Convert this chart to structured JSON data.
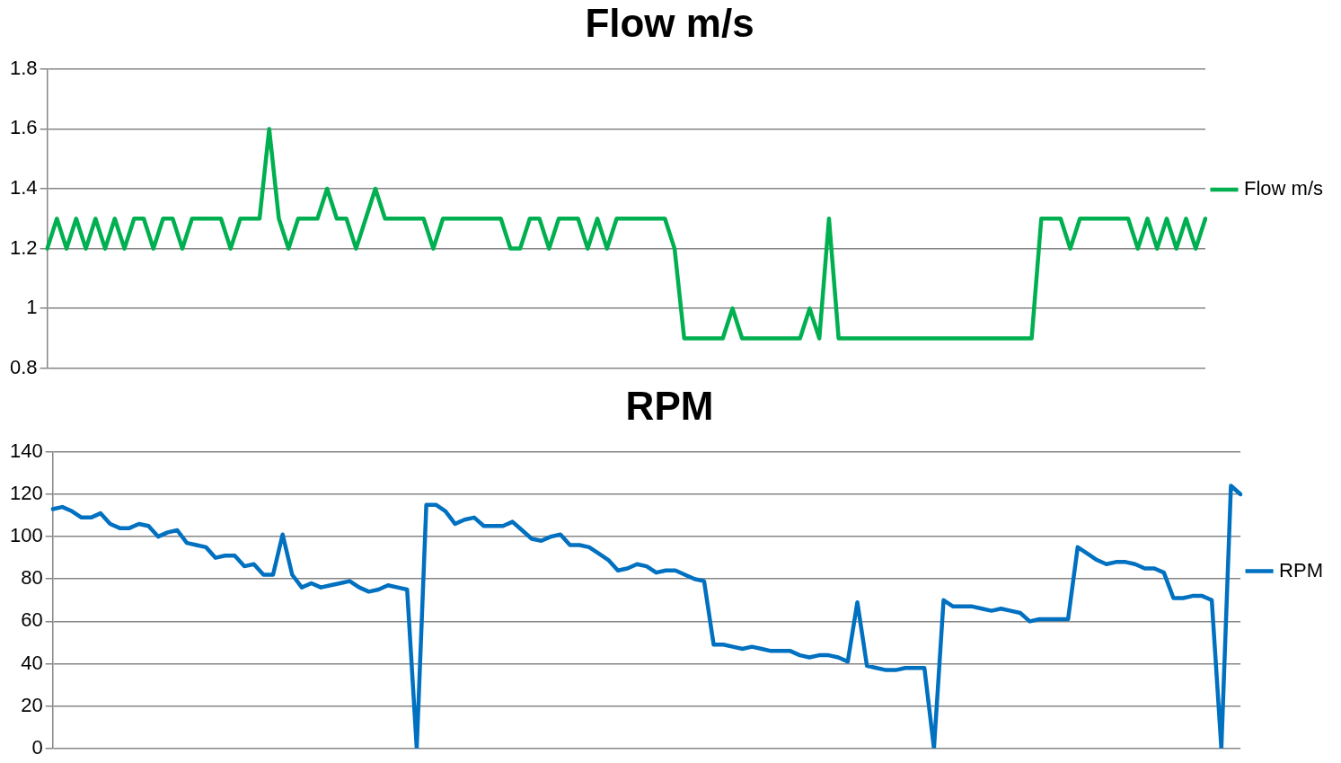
{
  "chart_data": [
    {
      "type": "line",
      "title": "Flow m/s",
      "categories": [
        null,
        null,
        null,
        null,
        null,
        null,
        null,
        null,
        null,
        null,
        null,
        null,
        null,
        null,
        null,
        null,
        null,
        null,
        null,
        null,
        null,
        null,
        null,
        null,
        null,
        null,
        null,
        null,
        null,
        null,
        null,
        null,
        null,
        null,
        null,
        null,
        null,
        null,
        null,
        null,
        null,
        null,
        null,
        null,
        null,
        null,
        null,
        null,
        null,
        null,
        null,
        null,
        null,
        null,
        null,
        null,
        null,
        null,
        null,
        null,
        null,
        null,
        null,
        null,
        null,
        null,
        null,
        null,
        null,
        null,
        null,
        null,
        null,
        null,
        null,
        null,
        null,
        null,
        null,
        null,
        null,
        null,
        null,
        null,
        null,
        null,
        null,
        null,
        null,
        null,
        null,
        null,
        null,
        null,
        null,
        null,
        null,
        null,
        null,
        null,
        null,
        null,
        null,
        null,
        null,
        null,
        null,
        null,
        null,
        null,
        null,
        null,
        null,
        null,
        null,
        null,
        null,
        null,
        null,
        null,
        null
      ],
      "series": [
        {
          "name": "Flow m/s",
          "color": "#00b050",
          "values": [
            1.2,
            1.3,
            1.2,
            1.3,
            1.2,
            1.3,
            1.2,
            1.3,
            1.2,
            1.3,
            1.3,
            1.2,
            1.3,
            1.3,
            1.2,
            1.3,
            1.3,
            1.3,
            1.3,
            1.2,
            1.3,
            1.3,
            1.3,
            1.6,
            1.3,
            1.2,
            1.3,
            1.3,
            1.3,
            1.4,
            1.3,
            1.3,
            1.2,
            1.3,
            1.4,
            1.3,
            1.3,
            1.3,
            1.3,
            1.3,
            1.2,
            1.3,
            1.3,
            1.3,
            1.3,
            1.3,
            1.3,
            1.3,
            1.2,
            1.2,
            1.3,
            1.3,
            1.2,
            1.3,
            1.3,
            1.3,
            1.2,
            1.3,
            1.2,
            1.3,
            1.3,
            1.3,
            1.3,
            1.3,
            1.3,
            1.2,
            0.9,
            0.9,
            0.9,
            0.9,
            0.9,
            1.0,
            0.9,
            0.9,
            0.9,
            0.9,
            0.9,
            0.9,
            0.9,
            1.0,
            0.9,
            1.3,
            0.9,
            0.9,
            0.9,
            0.9,
            0.9,
            0.9,
            0.9,
            0.9,
            0.9,
            0.9,
            0.9,
            0.9,
            0.9,
            0.9,
            0.9,
            0.9,
            0.9,
            0.9,
            0.9,
            0.9,
            0.9,
            1.3,
            1.3,
            1.3,
            1.2,
            1.3,
            1.3,
            1.3,
            1.3,
            1.3,
            1.3,
            1.2,
            1.3,
            1.2,
            1.3,
            1.2,
            1.3,
            1.2,
            1.3
          ]
        }
      ],
      "ylim": [
        0.8,
        1.8
      ],
      "yticks": [
        0.8,
        1,
        1.2,
        1.4,
        1.6,
        1.8
      ],
      "grid": "y",
      "legend": "right",
      "tick_labels": "y",
      "marker": "none",
      "line_style": "solid"
    },
    {
      "type": "line",
      "title": "RPM",
      "categories": [
        null,
        null,
        null,
        null,
        null,
        null,
        null,
        null,
        null,
        null,
        null,
        null,
        null,
        null,
        null,
        null,
        null,
        null,
        null,
        null,
        null,
        null,
        null,
        null,
        null,
        null,
        null,
        null,
        null,
        null,
        null,
        null,
        null,
        null,
        null,
        null,
        null,
        null,
        null,
        null,
        null,
        null,
        null,
        null,
        null,
        null,
        null,
        null,
        null,
        null,
        null,
        null,
        null,
        null,
        null,
        null,
        null,
        null,
        null,
        null,
        null,
        null,
        null,
        null,
        null,
        null,
        null,
        null,
        null,
        null,
        null,
        null,
        null,
        null,
        null,
        null,
        null,
        null,
        null,
        null,
        null,
        null,
        null,
        null,
        null,
        null,
        null,
        null,
        null,
        null,
        null,
        null,
        null,
        null,
        null,
        null,
        null,
        null,
        null,
        null,
        null,
        null,
        null,
        null,
        null,
        null,
        null,
        null,
        null,
        null,
        null,
        null,
        null,
        null,
        null,
        null,
        null,
        null,
        null,
        null,
        null,
        null,
        null,
        null,
        null
      ],
      "series": [
        {
          "name": "RPM",
          "color": "#0070c0",
          "values": [
            113,
            114,
            112,
            109,
            109,
            111,
            106,
            104,
            104,
            106,
            105,
            100,
            102,
            103,
            97,
            96,
            95,
            90,
            91,
            91,
            86,
            87,
            82,
            82,
            101,
            82,
            76,
            78,
            76,
            77,
            78,
            79,
            76,
            74,
            75,
            77,
            76,
            75,
            0,
            115,
            115,
            112,
            106,
            108,
            109,
            105,
            105,
            105,
            107,
            103,
            99,
            98,
            100,
            101,
            96,
            96,
            95,
            92,
            89,
            84,
            85,
            87,
            86,
            83,
            84,
            84,
            82,
            80,
            79,
            49,
            49,
            48,
            47,
            48,
            47,
            46,
            46,
            46,
            44,
            43,
            44,
            44,
            43,
            41,
            69,
            39,
            38,
            37,
            37,
            38,
            38,
            38,
            0,
            70,
            67,
            67,
            67,
            66,
            65,
            66,
            65,
            64,
            60,
            61,
            61,
            61,
            61,
            95,
            92,
            89,
            87,
            88,
            88,
            87,
            85,
            85,
            83,
            71,
            71,
            72,
            72,
            70,
            0,
            124,
            120
          ]
        }
      ],
      "ylim": [
        0,
        140
      ],
      "yticks": [
        0,
        20,
        40,
        60,
        80,
        100,
        120,
        140
      ],
      "grid": "y",
      "legend": "right",
      "tick_labels": "y",
      "marker": "none",
      "line_style": "solid"
    }
  ]
}
